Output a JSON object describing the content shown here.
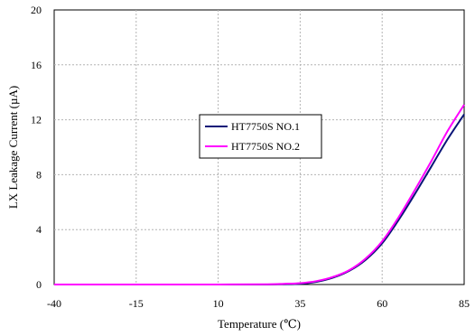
{
  "chart_data": {
    "type": "line",
    "title": "",
    "xlabel": "Temperature (℃)",
    "ylabel": "LX Leakage Current (µA)",
    "xlim": [
      -40,
      85
    ],
    "ylim": [
      0,
      20
    ],
    "xticks": [
      "-40",
      "-15",
      "10",
      "35",
      "60",
      "85"
    ],
    "yticks": [
      "0",
      "4",
      "8",
      "12",
      "16",
      "20"
    ],
    "grid": true,
    "legend": "center-right",
    "series": [
      {
        "name": "HT7750S NO.1",
        "color": "#0a1478",
        "x": [
          -40,
          -15,
          10,
          25,
          30,
          35,
          40,
          45,
          50,
          55,
          60,
          65,
          70,
          75,
          80,
          85
        ],
        "y": [
          0,
          0,
          0,
          0,
          0.02,
          0.05,
          0.2,
          0.5,
          1.0,
          1.8,
          3.0,
          4.7,
          6.6,
          8.6,
          10.6,
          12.4
        ]
      },
      {
        "name": "HT7750S NO.2",
        "color": "#ff00ff",
        "x": [
          -40,
          -15,
          10,
          25,
          30,
          35,
          40,
          45,
          50,
          55,
          60,
          65,
          70,
          75,
          80,
          85
        ],
        "y": [
          0,
          0,
          0,
          0.02,
          0.05,
          0.1,
          0.25,
          0.55,
          1.05,
          1.9,
          3.15,
          4.9,
          6.9,
          9.0,
          11.2,
          13.1
        ]
      }
    ]
  }
}
